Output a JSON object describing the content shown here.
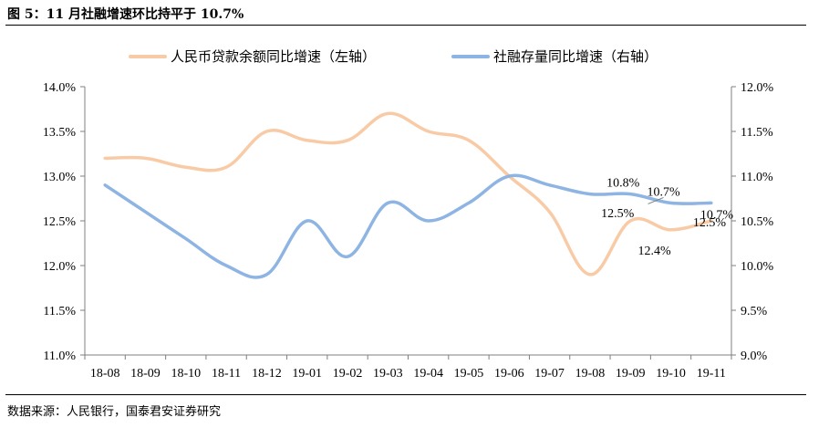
{
  "figure_title": "图 5：11 月社融增速环比持平于 10.7%",
  "source": "数据来源：人民银行，国泰君安证券研究",
  "chart_data": {
    "type": "line",
    "categories": [
      "18-08",
      "18-09",
      "18-10",
      "18-11",
      "18-12",
      "19-01",
      "19-02",
      "19-03",
      "19-04",
      "19-05",
      "19-06",
      "19-07",
      "19-08",
      "19-09",
      "19-10",
      "19-11"
    ],
    "y_left": {
      "min": 11.0,
      "max": 14.0,
      "step": 0.5,
      "unit": "%"
    },
    "y_right": {
      "min": 9.0,
      "max": 12.0,
      "step": 0.5,
      "unit": "%"
    },
    "left_tick_labels": [
      "14.0%",
      "13.5%",
      "13.0%",
      "12.5%",
      "12.0%",
      "11.5%",
      "11.0%"
    ],
    "right_tick_labels": [
      "12.0%",
      "11.5%",
      "11.0%",
      "10.5%",
      "10.0%",
      "9.5%",
      "9.0%"
    ],
    "grid": false,
    "legend_position": "top",
    "series": [
      {
        "name": "人民币贷款余额同比增速（左轴）",
        "axis": "left",
        "color": "#f8cba6",
        "values": [
          13.2,
          13.2,
          13.1,
          13.1,
          13.5,
          13.4,
          13.4,
          13.7,
          13.5,
          13.4,
          13.0,
          12.6,
          11.9,
          12.5,
          12.4,
          12.5
        ]
      },
      {
        "name": "社融存量同比增速（右轴）",
        "axis": "right",
        "color": "#8eb4e3",
        "values": [
          10.9,
          10.6,
          10.3,
          10.0,
          9.9,
          10.5,
          10.1,
          10.7,
          10.5,
          10.7,
          11.0,
          10.9,
          10.8,
          10.8,
          10.7,
          10.7
        ]
      }
    ],
    "annotations": [
      {
        "text": "10.8%",
        "series": 1,
        "index": 13
      },
      {
        "text": "10.7%",
        "series": 1,
        "index": 14
      },
      {
        "text": "10.7%",
        "series": 1,
        "index": 15
      },
      {
        "text": "12.5%",
        "series": 0,
        "index": 13
      },
      {
        "text": "12.4%",
        "series": 0,
        "index": 14
      },
      {
        "text": "12.5%",
        "series": 0,
        "index": 15
      }
    ]
  }
}
